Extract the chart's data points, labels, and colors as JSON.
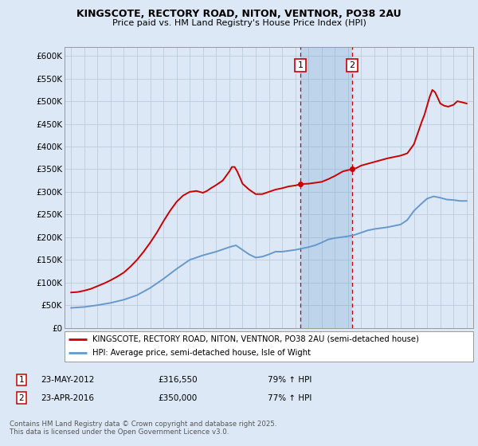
{
  "title1": "KINGSCOTE, RECTORY ROAD, NITON, VENTNOR, PO38 2AU",
  "title2": "Price paid vs. HM Land Registry's House Price Index (HPI)",
  "ylabel_ticks": [
    "£0",
    "£50K",
    "£100K",
    "£150K",
    "£200K",
    "£250K",
    "£300K",
    "£350K",
    "£400K",
    "£450K",
    "£500K",
    "£550K",
    "£600K"
  ],
  "ytick_values": [
    0,
    50000,
    100000,
    150000,
    200000,
    250000,
    300000,
    350000,
    400000,
    450000,
    500000,
    550000,
    600000
  ],
  "xlim": [
    1994.5,
    2025.5
  ],
  "ylim": [
    0,
    620000
  ],
  "sale1_date": 2012.39,
  "sale1_price": 316550,
  "sale2_date": 2016.32,
  "sale2_price": 350000,
  "hpi_color": "#6699cc",
  "price_color": "#cc0000",
  "background_color": "#dce8f5",
  "grid_color": "#bbccdd",
  "legend_line1": "KINGSCOTE, RECTORY ROAD, NITON, VENTNOR, PO38 2AU (semi-detached house)",
  "legend_line2": "HPI: Average price, semi-detached house, Isle of Wight",
  "annotation1_date": "23-MAY-2012",
  "annotation1_price": "£316,550",
  "annotation1_hpi": "79% ↑ HPI",
  "annotation2_date": "23-APR-2016",
  "annotation2_price": "£350,000",
  "annotation2_hpi": "77% ↑ HPI",
  "footer": "Contains HM Land Registry data © Crown copyright and database right 2025.\nThis data is licensed under the Open Government Licence v3.0."
}
